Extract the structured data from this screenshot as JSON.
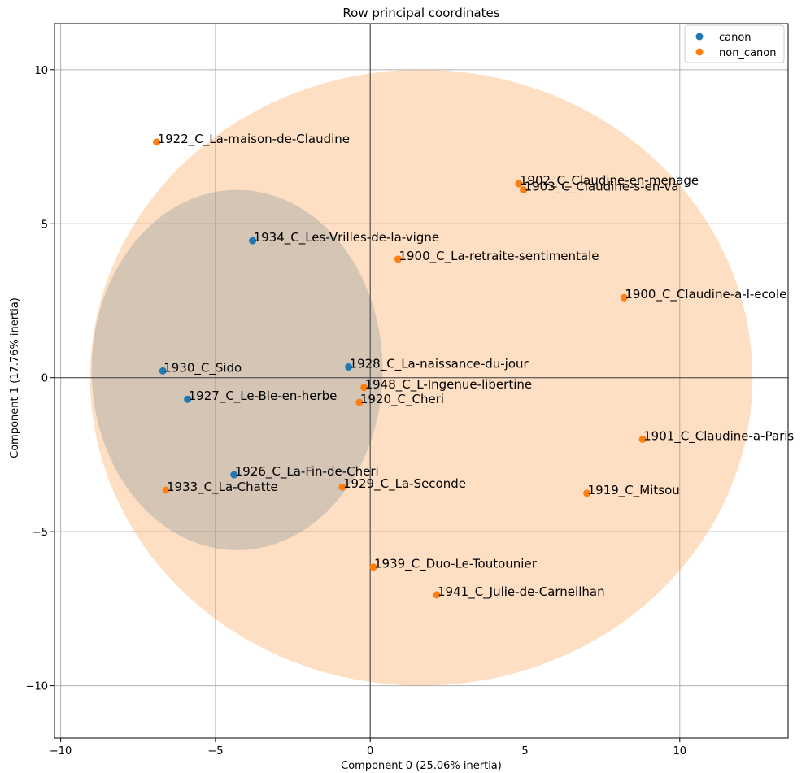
{
  "chart_data": {
    "type": "scatter",
    "title": "Row principal coordinates",
    "xlabel": "Component 0 (25.06% inertia)",
    "ylabel": "Component 1 (17.76% inertia)",
    "xlim": [
      -10.2,
      13.5
    ],
    "ylim": [
      -11.7,
      11.5
    ],
    "xticks": [
      -10,
      -5,
      0,
      5,
      10
    ],
    "yticks": [
      -10,
      -5,
      0,
      5,
      10
    ],
    "xtick_labels": [
      "−10",
      "−5",
      "0",
      "5",
      "10"
    ],
    "ytick_labels": [
      "−10",
      "−5",
      "0",
      "5",
      "10"
    ],
    "grid": true,
    "legend_position": "top-right",
    "series": [
      {
        "name": "canon",
        "color": "#1f77b4",
        "ellipse": {
          "cx": -4.3,
          "cy": 0.25,
          "rx": 4.7,
          "ry": 5.85
        },
        "points": [
          {
            "label": "1934_C_Les-Vrilles-de-la-vigne",
            "x": -3.8,
            "y": 4.45
          },
          {
            "label": "1930_C_Sido",
            "x": -6.7,
            "y": 0.22
          },
          {
            "label": "1928_C_La-naissance-du-jour",
            "x": -0.7,
            "y": 0.35
          },
          {
            "label": "1927_C_Le-Ble-en-herbe",
            "x": -5.9,
            "y": -0.7
          },
          {
            "label": "1926_C_La-Fin-de-Cheri",
            "x": -4.4,
            "y": -3.15
          }
        ]
      },
      {
        "name": "non_canon",
        "color": "#ff7f0e",
        "ellipse": {
          "cx": 1.65,
          "cy": 0.0,
          "rx": 10.7,
          "ry": 10.0
        },
        "points": [
          {
            "label": "1922_C_La-maison-de-Claudine",
            "x": -6.9,
            "y": 7.65
          },
          {
            "label": "1902_C_Claudine-en-menage",
            "x": 4.8,
            "y": 6.3
          },
          {
            "label": "1903_C_Claudine-s-en-va",
            "x": 4.95,
            "y": 6.1
          },
          {
            "label": "1900_C_La-retraite-sentimentale",
            "x": 0.9,
            "y": 3.85
          },
          {
            "label": "1900_C_Claudine-a-l-ecole",
            "x": 8.2,
            "y": 2.6
          },
          {
            "label": "1948_C_L-Ingenue-libertine",
            "x": -0.2,
            "y": -0.32
          },
          {
            "label": "1920_C_Cheri",
            "x": -0.35,
            "y": -0.8
          },
          {
            "label": "1901_C_Claudine-a-Paris",
            "x": 8.8,
            "y": -2.0
          },
          {
            "label": "1933_C_La-Chatte",
            "x": -6.6,
            "y": -3.65
          },
          {
            "label": "1929_C_La-Seconde",
            "x": -0.9,
            "y": -3.55
          },
          {
            "label": "1919_C_Mitsou",
            "x": 7.0,
            "y": -3.75
          },
          {
            "label": "1939_C_Duo-Le-Toutounier",
            "x": 0.1,
            "y": -6.15
          },
          {
            "label": "1941_C_Julie-de-Carneilhan",
            "x": 2.15,
            "y": -7.05
          }
        ]
      }
    ]
  }
}
